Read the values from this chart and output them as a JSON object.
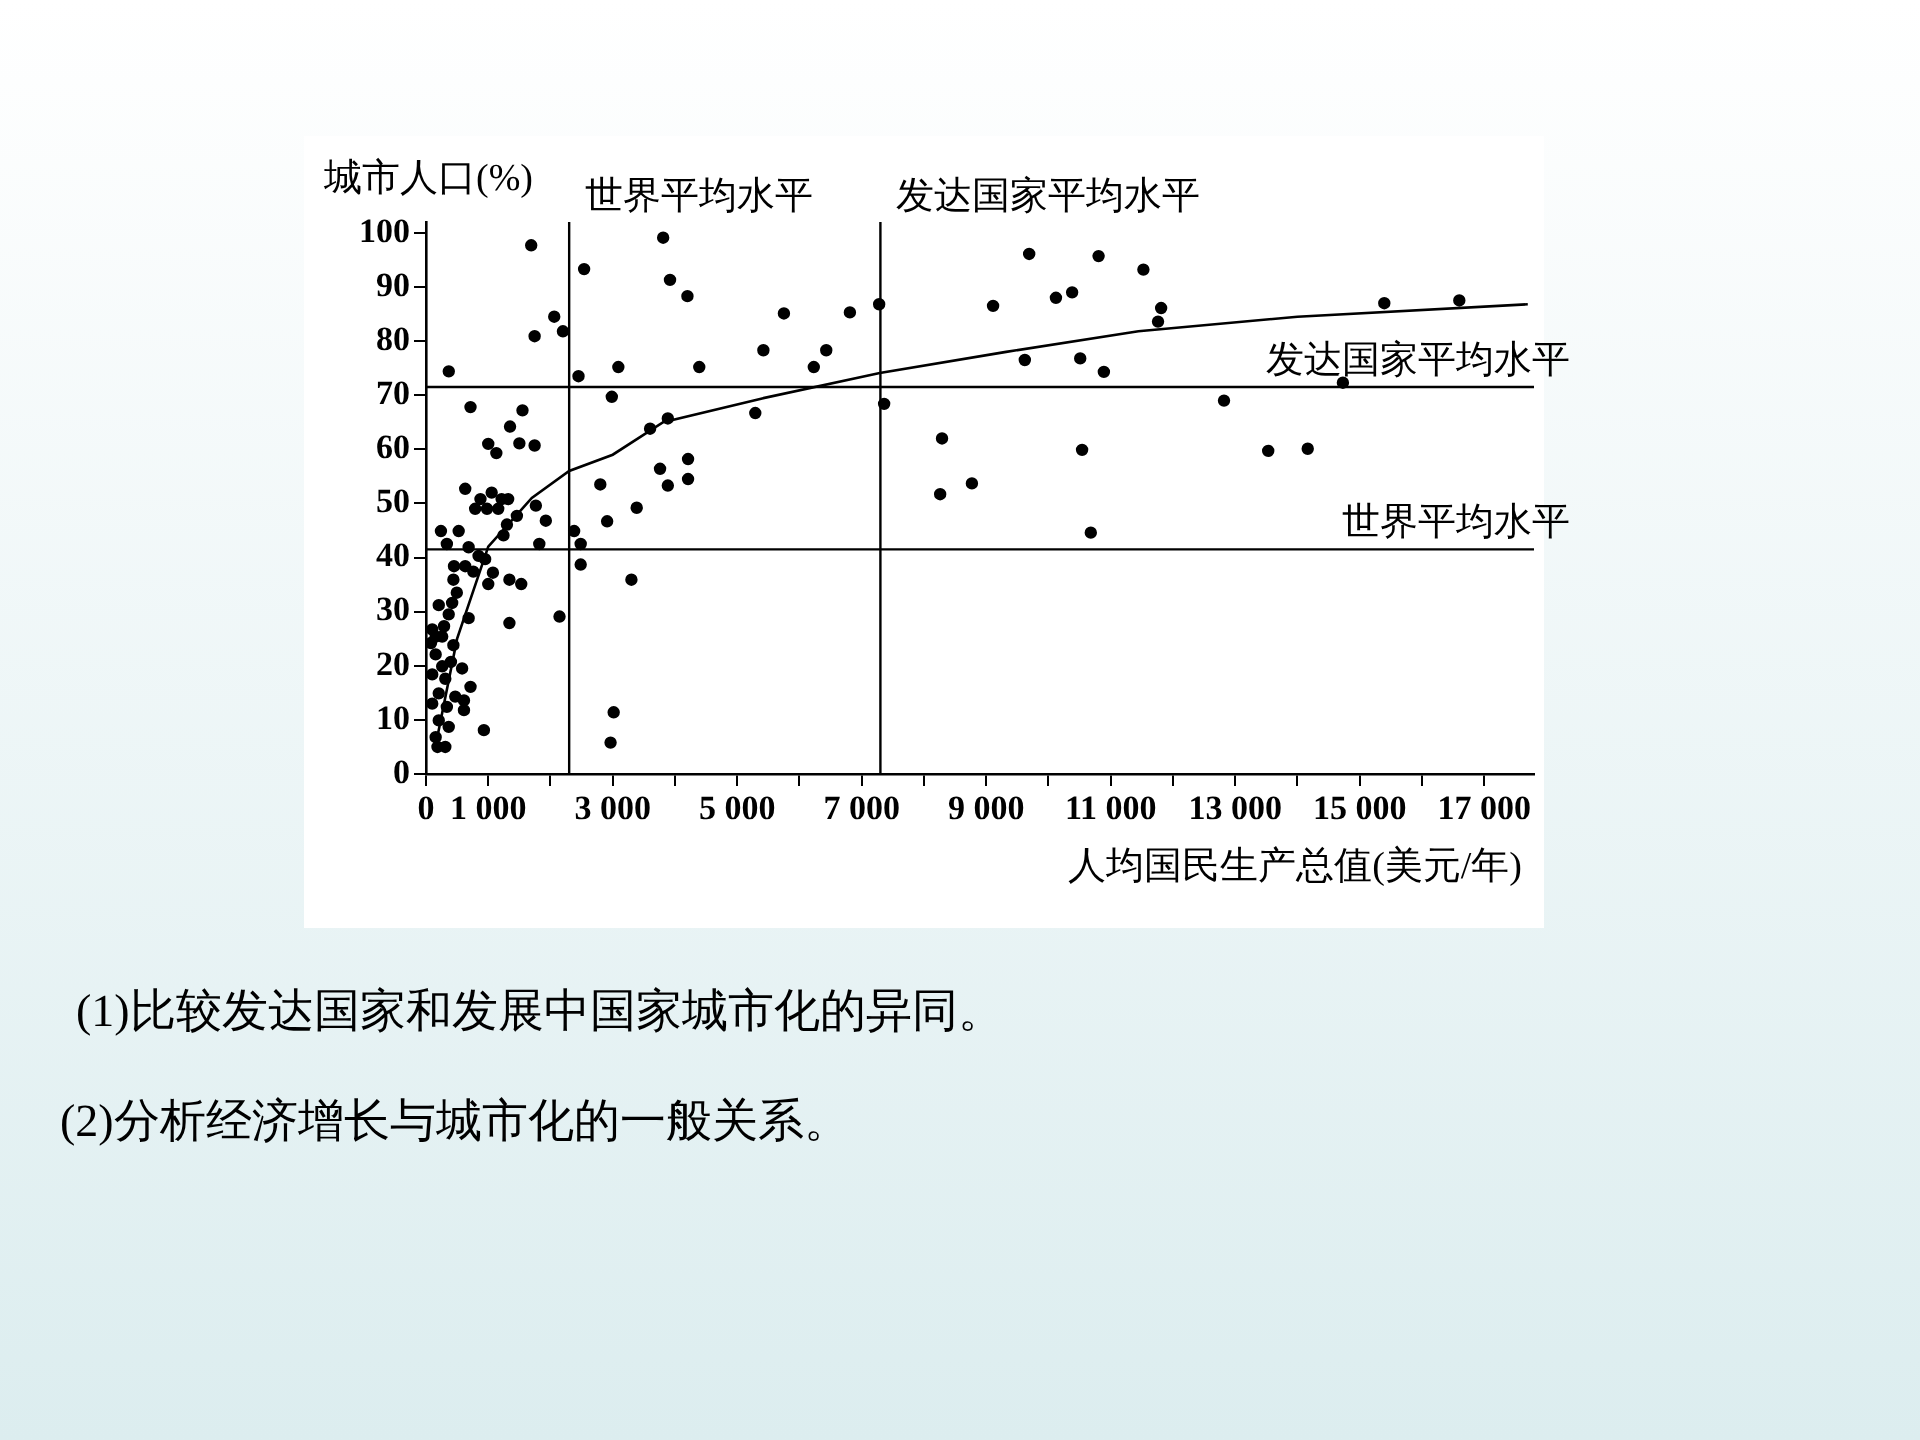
{
  "chart_data": {
    "type": "scatter",
    "xlabel": "人均国民生产总值(美元/年)",
    "ylabel": "城市人口(%)",
    "xlim": [
      0,
      17800
    ],
    "ylim": [
      0,
      102
    ],
    "xticks": [
      0,
      {
        "value": 1000,
        "label": "1 000"
      },
      {
        "value": 2000,
        "label": null
      },
      {
        "value": 3000,
        "label": "3 000"
      },
      {
        "value": 4000,
        "label": null
      },
      {
        "value": 5000,
        "label": "5 000"
      },
      {
        "value": 6000,
        "label": null
      },
      {
        "value": 7000,
        "label": "7 000"
      },
      {
        "value": 8000,
        "label": null
      },
      {
        "value": 9000,
        "label": "9 000"
      },
      {
        "value": 10000,
        "label": null
      },
      {
        "value": 11000,
        "label": "11 000"
      },
      {
        "value": 12000,
        "label": null
      },
      {
        "value": 13000,
        "label": "13 000"
      },
      {
        "value": 14000,
        "label": null
      },
      {
        "value": 15000,
        "label": "15 000"
      },
      {
        "value": 16000,
        "label": null
      },
      {
        "value": 17000,
        "label": "17 000"
      }
    ],
    "yticks": [
      0,
      10,
      20,
      30,
      40,
      50,
      60,
      70,
      80,
      90,
      100
    ],
    "grid": false,
    "legend": false,
    "series": [
      {
        "color": "#000000",
        "marker": "circle",
        "x": [
          366,
          1690,
          1745,
          2060,
          2200,
          2540,
          2450,
          3090,
          2985,
          3810,
          3920,
          4200,
          4390,
          5420,
          5750,
          6230,
          6430,
          6810,
          7280,
          7360,
          5290,
          3600,
          3885,
          715,
          1000,
          1130,
          1350,
          1550,
          1500,
          1745,
          630,
          790,
          875,
          1055,
          980,
          1160,
          1215,
          1320,
          1460,
          1300,
          1765,
          1925,
          2800,
          2910,
          3385,
          3760,
          3885,
          4210,
          4210,
          240,
          525,
          2380,
          1245,
          335,
          685,
          845,
          950,
          450,
          630,
          760,
          1075,
          1000,
          440,
          495,
          420,
          205,
          365,
          685,
          290,
          100,
          155,
          260,
          80,
          440,
          155,
          400,
          260,
          580,
          100,
          310,
          715,
          470,
          205,
          610,
          100,
          335,
          610,
          205,
          365,
          930,
          155,
          310,
          185,
          1340,
          1530,
          1340,
          1820,
          2145,
          2485,
          2485,
          3300,
          3015,
          2965,
          9690,
          9110,
          10805,
          10120,
          10380,
          11525,
          11810,
          11760,
          9620,
          10510,
          10890,
          15395,
          16600,
          14730,
          12820,
          8290,
          10540,
          13530,
          14165,
          8260,
          8770,
          10680
        ],
        "values": [
          74.4,
          97.7,
          80.9,
          84.5,
          81.8,
          93.3,
          73.5,
          75.2,
          69.7,
          99.1,
          91.3,
          88.3,
          75.2,
          78.3,
          85.1,
          75.2,
          78.3,
          85.3,
          86.8,
          68.4,
          66.7,
          63.8,
          65.7,
          67.8,
          61,
          59.3,
          64.2,
          67.2,
          61.1,
          60.7,
          52.7,
          49,
          50.8,
          52,
          49,
          49,
          50.8,
          50.8,
          47.7,
          46.1,
          49.6,
          46.8,
          53.5,
          46.7,
          49.2,
          56.4,
          53.3,
          58.2,
          54.5,
          44.9,
          44.9,
          44.9,
          44.1,
          42.5,
          41.9,
          40.3,
          39.7,
          38.4,
          38.4,
          37.4,
          37.2,
          35.1,
          35.9,
          33.5,
          31.6,
          31.2,
          29.5,
          28.8,
          27.3,
          26.7,
          25.4,
          25.4,
          24.2,
          23.8,
          22.1,
          20.7,
          19.9,
          19.5,
          18.4,
          17.6,
          16.1,
          14.3,
          14.9,
          13.6,
          13,
          12.4,
          11.8,
          9.9,
          8.7,
          8.1,
          6.8,
          5,
          5,
          35.9,
          35.1,
          27.9,
          42.5,
          29.1,
          42.5,
          38.7,
          35.9,
          11.4,
          5.8,
          96.1,
          86.5,
          95.7,
          88,
          89,
          93.2,
          86.1,
          83.6,
          76.5,
          76.8,
          74.3,
          87,
          87.5,
          72.3,
          69,
          62,
          59.9,
          59.7,
          60.1,
          51.7,
          53.7,
          44.6
        ]
      },
      {
        "type": "line",
        "color": "#000000",
        "marker": "none",
        "line_style": "solid",
        "x": [
          150,
          500,
          1000,
          1700,
          2300,
          3000,
          3810,
          5400,
          7290,
          9320,
          11445,
          14000,
          17700
        ],
        "values": [
          5,
          25,
          42,
          51,
          56,
          59,
          65,
          69.4,
          74.1,
          78,
          81.8,
          84.5,
          86.8
        ]
      }
    ],
    "ref_lines": [
      {
        "axis": "x",
        "value": 2300,
        "label": "世界平均水平",
        "color": "#000000"
      },
      {
        "axis": "x",
        "value": 7300,
        "label": "发达国家平均水平",
        "color": "#000000"
      },
      {
        "axis": "y",
        "value": 71.5,
        "label": "发达国家平均水平",
        "color": "#000000"
      },
      {
        "axis": "y",
        "value": 41.5,
        "label": "世界平均水平",
        "color": "#000000"
      }
    ],
    "annotations": [
      "(1)比较发达国家和发展中国家城市化的异同。",
      "(2)分析经济增长与城市化的一般关系。"
    ]
  }
}
